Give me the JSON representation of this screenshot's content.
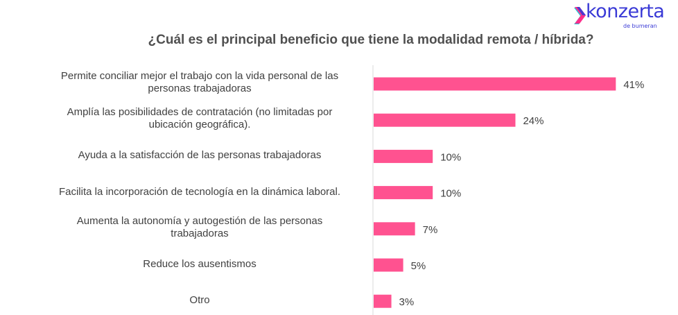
{
  "logo": {
    "brand": "konzerta",
    "subtitle": "de bumeran",
    "colors": {
      "primary": "#3a3ad6",
      "accent": "#ff2d8a",
      "accent2": "#21c4d6"
    }
  },
  "chart_data": {
    "type": "bar",
    "orientation": "horizontal",
    "title": "¿Cuál es el principal beneficio que tiene la modalidad remota / híbrida?",
    "xlabel": "",
    "ylabel": "",
    "categories": [
      "Permite conciliar mejor el trabajo con la vida personal de las personas trabajadoras",
      "Amplía las posibilidades de contratación (no limitadas por ubicación geográfica).",
      "Ayuda a la satisfacción de las personas trabajadoras",
      "Facilita la incorporación de tecnología en la dinámica laboral.",
      "Aumenta la autonomía y autogestión de las personas trabajadoras",
      "Reduce los ausentismos",
      "Otro"
    ],
    "category_lines": [
      [
        "Permite conciliar mejor el trabajo con la vida personal de las",
        "personas trabajadoras"
      ],
      [
        "Amplía las posibilidades de contratación (no limitadas por",
        "ubicación geográfica)."
      ],
      [
        "Ayuda a la satisfacción de las personas trabajadoras"
      ],
      [
        "Facilita la incorporación de tecnología en la dinámica laboral."
      ],
      [
        "Aumenta la autonomía y autogestión de las personas",
        "trabajadoras"
      ],
      [
        "Reduce los ausentismos"
      ],
      [
        "Otro"
      ]
    ],
    "values": [
      41,
      24,
      10,
      10,
      7,
      5,
      3
    ],
    "data_labels": [
      "41%",
      "24%",
      "10%",
      "10%",
      "7%",
      "5%",
      "3%"
    ],
    "unit": "%",
    "xlim": [
      0,
      50
    ],
    "grid": false,
    "legend": "none",
    "bar_color": "#ff5290",
    "axis_color": "#d9d9d9"
  }
}
